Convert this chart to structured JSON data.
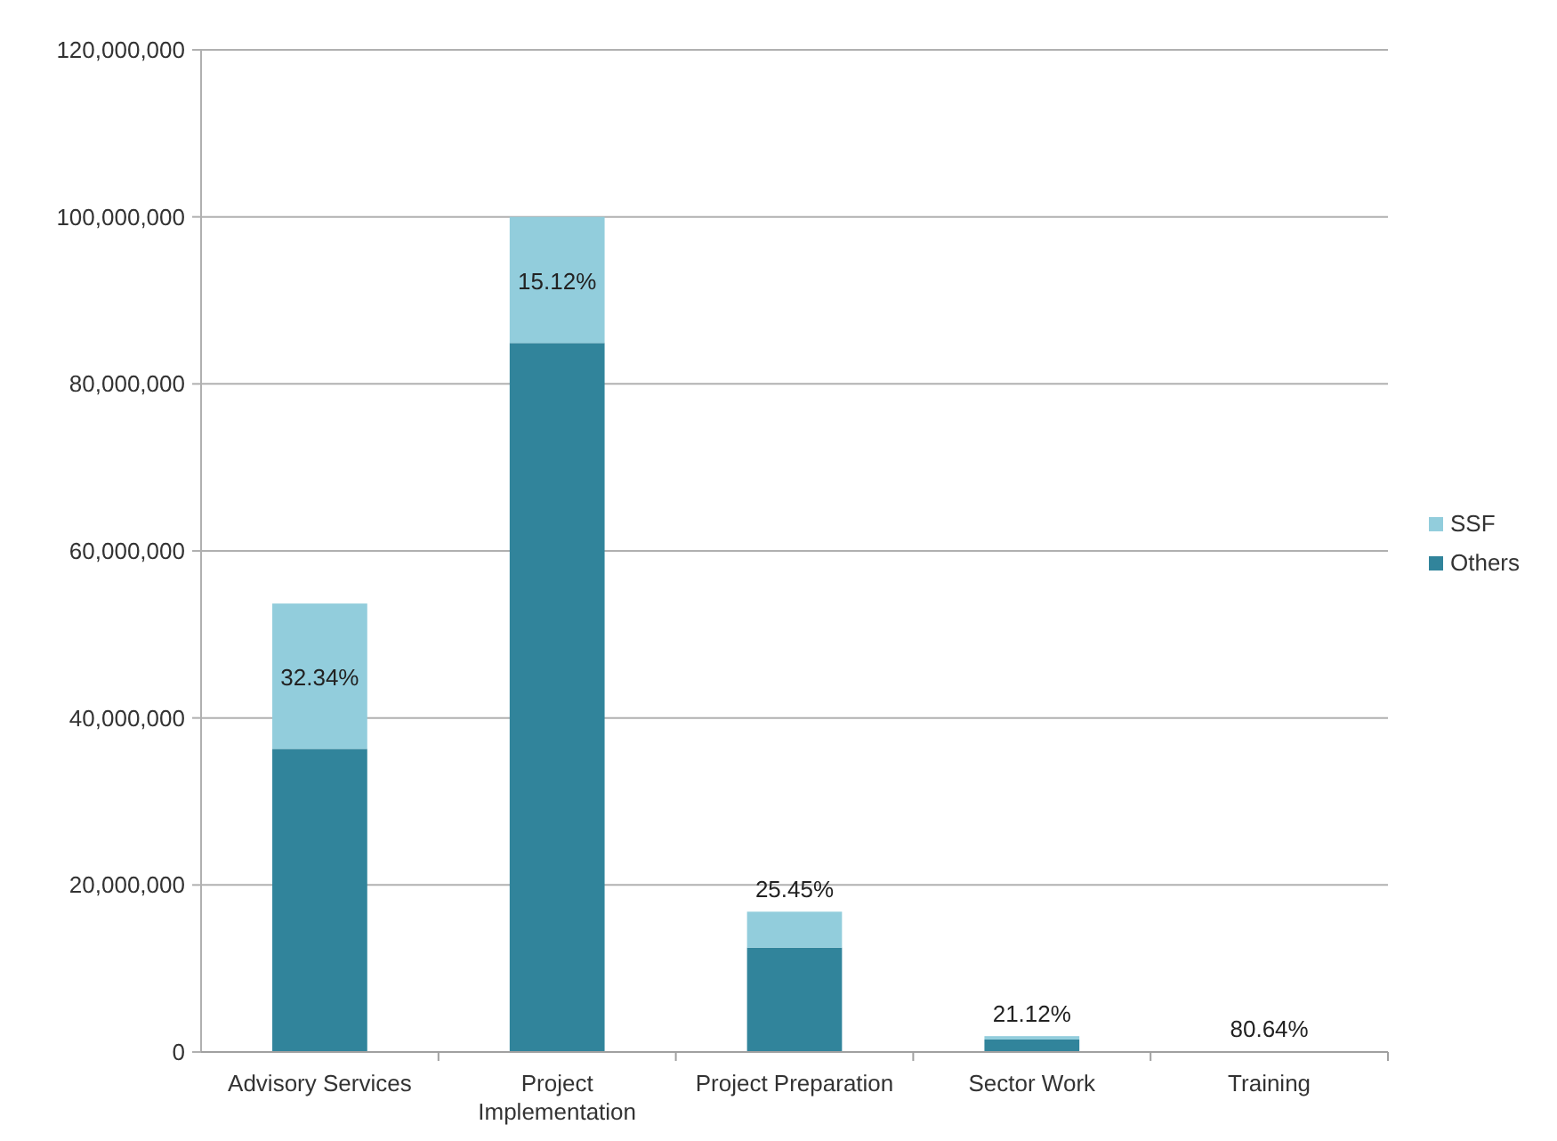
{
  "chart_data": {
    "type": "bar",
    "stacked": true,
    "categories": [
      "Advisory Services",
      "Project Implementation",
      "Project Preparation",
      "Sector Work",
      "Training"
    ],
    "series": [
      {
        "name": "Others",
        "color": "#31849b",
        "values": [
          36300000,
          84900000,
          12500000,
          1500000,
          20000
        ]
      },
      {
        "name": "SSF",
        "color": "#92cddc",
        "values": [
          17400000,
          15100000,
          4300000,
          400000,
          80000
        ]
      }
    ],
    "annotations": [
      {
        "text": "32.34%",
        "x": "Advisory Services",
        "y": 53700000
      },
      {
        "text": "15.12%",
        "x": "Project Implementation",
        "y": 100000000
      },
      {
        "text": "25.45%",
        "x": "Project Preparation",
        "y": 16800000
      },
      {
        "text": "21.12%",
        "x": "Sector Work",
        "y": 1900000
      },
      {
        "text": "80.64%",
        "x": "Training",
        "y": 100000
      }
    ],
    "ylim": [
      0,
      120000000
    ],
    "yticks": [
      {
        "value": 0,
        "label": "0"
      },
      {
        "value": 20000000,
        "label": "20,000,000"
      },
      {
        "value": 40000000,
        "label": "40,000,000"
      },
      {
        "value": 60000000,
        "label": "60,000,000"
      },
      {
        "value": 80000000,
        "label": "80,000,000"
      },
      {
        "value": 100000000,
        "label": "100,000,000"
      },
      {
        "value": 120000000,
        "label": "120,000,000"
      }
    ],
    "grid": "y",
    "legend": "right"
  }
}
